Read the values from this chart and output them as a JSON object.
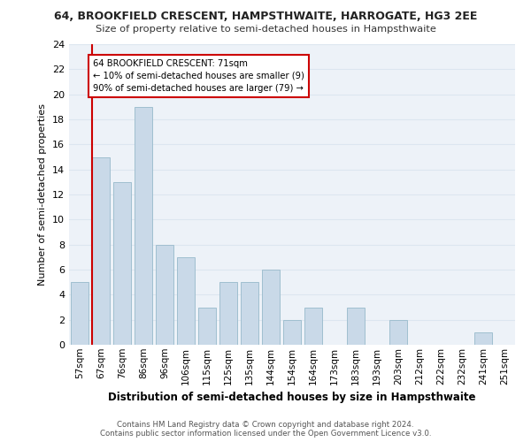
{
  "title": "64, BROOKFIELD CRESCENT, HAMPSTHWAITE, HARROGATE, HG3 2EE",
  "subtitle": "Size of property relative to semi-detached houses in Hampsthwaite",
  "xlabel": "Distribution of semi-detached houses by size in Hampsthwaite",
  "ylabel": "Number of semi-detached properties",
  "categories": [
    "57sqm",
    "67sqm",
    "76sqm",
    "86sqm",
    "96sqm",
    "106sqm",
    "115sqm",
    "125sqm",
    "135sqm",
    "144sqm",
    "154sqm",
    "164sqm",
    "173sqm",
    "183sqm",
    "193sqm",
    "203sqm",
    "212sqm",
    "222sqm",
    "232sqm",
    "241sqm",
    "251sqm"
  ],
  "values": [
    5,
    15,
    13,
    19,
    8,
    7,
    3,
    5,
    5,
    6,
    2,
    3,
    0,
    3,
    0,
    2,
    0,
    0,
    0,
    1,
    0
  ],
  "bar_color": "#c9d9e8",
  "bar_edge_color": "#a0bfd0",
  "highlight_line_color": "#cc0000",
  "annotation_box_text": "64 BROOKFIELD CRESCENT: 71sqm\n← 10% of semi-detached houses are smaller (9)\n90% of semi-detached houses are larger (79) →",
  "annotation_box_color": "#cc0000",
  "ylim": [
    0,
    24
  ],
  "yticks": [
    0,
    2,
    4,
    6,
    8,
    10,
    12,
    14,
    16,
    18,
    20,
    22,
    24
  ],
  "grid_color": "#dce6f0",
  "background_color": "#edf2f8",
  "footer_line1": "Contains HM Land Registry data © Crown copyright and database right 2024.",
  "footer_line2": "Contains public sector information licensed under the Open Government Licence v3.0."
}
